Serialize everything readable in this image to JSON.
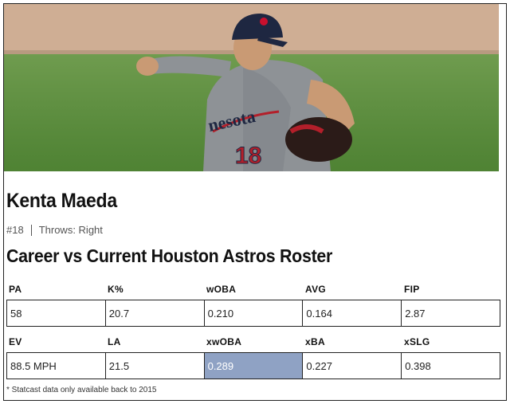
{
  "player": {
    "name": "Kenta Maeda",
    "number": "#18",
    "throws": "Throws: Right"
  },
  "section_title": "Career vs Current Houston Astros Roster",
  "photo": {
    "jersey_text": "nesota",
    "jersey_number": "18",
    "jersey_color": "#8e9296",
    "cap_color": "#1e2741",
    "grass_color": "#5e8f3c",
    "dirt_color": "#c9a98d"
  },
  "stats_row1": {
    "headers": [
      "PA",
      "K%",
      "wOBA",
      "AVG",
      "FIP"
    ],
    "values": [
      "58",
      "20.7",
      "0.210",
      "0.164",
      "2.87"
    ]
  },
  "stats_row2": {
    "headers": [
      "EV",
      "LA",
      "xwOBA",
      "xBA",
      "xSLG"
    ],
    "values": [
      "88.5 MPH",
      "21.5",
      "0.289",
      "0.227",
      "0.398"
    ]
  },
  "highlight_color": "#8fa2c4",
  "footnote": "* Statcast data only available back to 2015"
}
